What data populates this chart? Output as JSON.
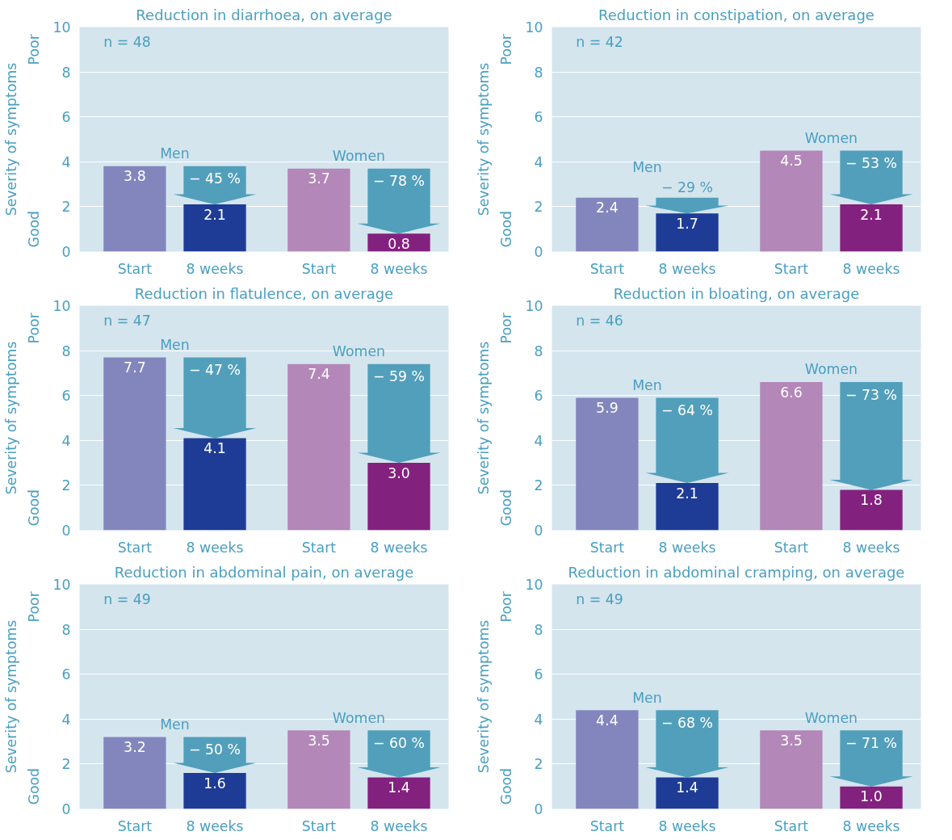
{
  "chart_data": [
    {
      "type": "bar",
      "title": "Reduction in diarrhoea, on average",
      "ylabel": "Severity of symptoms",
      "categories": [
        "Start",
        "8 weeks",
        "Start",
        "8 weeks"
      ],
      "series": [
        {
          "name": "Men",
          "colors": [
            "#8386bd",
            "#1e3c96",
            "#8386bd",
            "#1e3c96"
          ],
          "values": [
            3.8,
            2.1,
            null,
            null
          ],
          "value_labels": [
            "3.8",
            "2.1",
            null,
            null
          ]
        },
        {
          "name": "Women",
          "colors": [
            "#b387b8",
            "#83217f",
            "#b387b8",
            "#83217f"
          ],
          "values": [
            null,
            null,
            3.7,
            0.8
          ],
          "value_labels": [
            null,
            null,
            "3.7",
            "0.8"
          ]
        }
      ],
      "ylim": [
        0,
        10
      ],
      "yticks": [
        0,
        2,
        4,
        6,
        8,
        10
      ],
      "grid": "y",
      "annotations": [
        "n = 48",
        "− 45 %",
        "− 78 %",
        "Good",
        "Poor"
      ]
    },
    {
      "type": "bar",
      "title": "Reduction in constipation, on average",
      "ylabel": "Severity of symptoms",
      "categories": [
        "Start",
        "8 weeks",
        "Start",
        "8 weeks"
      ],
      "series": [
        {
          "name": "Men",
          "colors": [
            "#8386bd",
            "#1e3c96",
            "#8386bd",
            "#1e3c96"
          ],
          "values": [
            2.4,
            1.7,
            null,
            null
          ],
          "value_labels": [
            "2.4",
            "1.7",
            null,
            null
          ]
        },
        {
          "name": "Women",
          "colors": [
            "#b387b8",
            "#83217f",
            "#b387b8",
            "#83217f"
          ],
          "values": [
            null,
            null,
            4.5,
            2.1
          ],
          "value_labels": [
            null,
            null,
            "4.5",
            "2.1"
          ]
        }
      ],
      "ylim": [
        0,
        10
      ],
      "yticks": [
        0,
        2,
        4,
        6,
        8,
        10
      ],
      "grid": "y",
      "annotations": [
        "n = 42",
        "− 29 %",
        "− 53 %",
        "Good",
        "Poor"
      ]
    },
    {
      "type": "bar",
      "title": "Reduction in flatulence, on average",
      "ylabel": "Severity of symptoms",
      "categories": [
        "Start",
        "8 weeks",
        "Start",
        "8 weeks"
      ],
      "series": [
        {
          "name": "Men",
          "colors": [
            "#8386bd",
            "#1e3c96",
            "#8386bd",
            "#1e3c96"
          ],
          "values": [
            7.7,
            4.1,
            null,
            null
          ],
          "value_labels": [
            "7.7",
            "4.1",
            null,
            null
          ]
        },
        {
          "name": "Women",
          "colors": [
            "#b387b8",
            "#83217f",
            "#b387b8",
            "#83217f"
          ],
          "values": [
            null,
            null,
            7.4,
            3.0
          ],
          "value_labels": [
            null,
            null,
            "7.4",
            "3.0"
          ]
        }
      ],
      "ylim": [
        0,
        10
      ],
      "yticks": [
        0,
        2,
        4,
        6,
        8,
        10
      ],
      "grid": "y",
      "annotations": [
        "n = 47",
        "− 47 %",
        "− 59 %",
        "Good",
        "Poor"
      ]
    },
    {
      "type": "bar",
      "title": "Reduction in bloating, on average",
      "ylabel": "Severity of symptoms",
      "categories": [
        "Start",
        "8 weeks",
        "Start",
        "8 weeks"
      ],
      "series": [
        {
          "name": "Men",
          "colors": [
            "#8386bd",
            "#1e3c96",
            "#8386bd",
            "#1e3c96"
          ],
          "values": [
            5.9,
            2.1,
            null,
            null
          ],
          "value_labels": [
            "5.9",
            "2.1",
            null,
            null
          ]
        },
        {
          "name": "Women",
          "colors": [
            "#b387b8",
            "#83217f",
            "#b387b8",
            "#83217f"
          ],
          "values": [
            null,
            null,
            6.6,
            1.8
          ],
          "value_labels": [
            null,
            null,
            "6.6",
            "1.8"
          ]
        }
      ],
      "ylim": [
        0,
        10
      ],
      "yticks": [
        0,
        2,
        4,
        6,
        8,
        10
      ],
      "grid": "y",
      "annotations": [
        "n = 46",
        "− 64 %",
        "− 73 %",
        "Good",
        "Poor"
      ]
    },
    {
      "type": "bar",
      "title": "Reduction in abdominal pain, on average",
      "ylabel": "Severity of symptoms",
      "categories": [
        "Start",
        "8 weeks",
        "Start",
        "8 weeks"
      ],
      "series": [
        {
          "name": "Men",
          "colors": [
            "#8386bd",
            "#1e3c96",
            "#8386bd",
            "#1e3c96"
          ],
          "values": [
            3.2,
            1.6,
            null,
            null
          ],
          "value_labels": [
            "3.2",
            "1.6",
            null,
            null
          ]
        },
        {
          "name": "Women",
          "colors": [
            "#b387b8",
            "#83217f",
            "#b387b8",
            "#83217f"
          ],
          "values": [
            null,
            null,
            3.5,
            1.4
          ],
          "value_labels": [
            null,
            null,
            "3.5",
            "1.4"
          ]
        }
      ],
      "ylim": [
        0,
        10
      ],
      "yticks": [
        0,
        2,
        4,
        6,
        8,
        10
      ],
      "grid": "y",
      "annotations": [
        "n = 49",
        "− 50 %",
        "− 60 %",
        "Good",
        "Poor"
      ]
    },
    {
      "type": "bar",
      "title": "Reduction in abdominal cramping, on average",
      "ylabel": "Severity of symptoms",
      "categories": [
        "Start",
        "8 weeks",
        "Start",
        "8 weeks"
      ],
      "series": [
        {
          "name": "Men",
          "colors": [
            "#8386bd",
            "#1e3c96",
            "#8386bd",
            "#1e3c96"
          ],
          "values": [
            4.4,
            1.4,
            null,
            null
          ],
          "value_labels": [
            "4.4",
            "1.4",
            null,
            null
          ]
        },
        {
          "name": "Women",
          "colors": [
            "#b387b8",
            "#83217f",
            "#b387b8",
            "#83217f"
          ],
          "values": [
            null,
            null,
            3.5,
            1.0
          ],
          "value_labels": [
            null,
            null,
            "3.5",
            "1.0"
          ]
        }
      ],
      "ylim": [
        0,
        10
      ],
      "yticks": [
        0,
        2,
        4,
        6,
        8,
        10
      ],
      "grid": "y",
      "annotations": [
        "n = 49",
        "− 68 %",
        "− 71 %",
        "Good",
        "Poor"
      ]
    }
  ]
}
